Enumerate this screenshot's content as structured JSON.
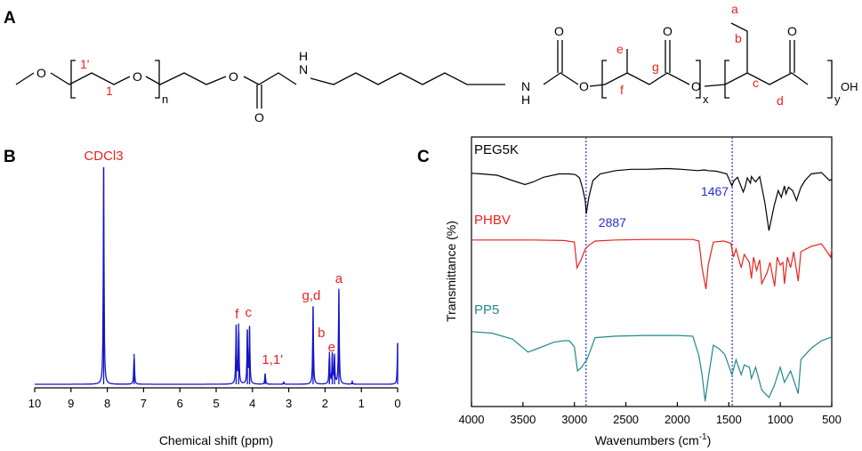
{
  "panel_labels": [
    "A",
    "B",
    "C"
  ],
  "structure": {
    "atoms": {
      "o1": "O",
      "o2": "O",
      "o3": "O",
      "o_carb1": "O",
      "nh1": "H",
      "n1": "N",
      "nh2": "N",
      "h2": "H",
      "o_carb2": "O",
      "o4": "O",
      "o_c1": "O",
      "o5": "O",
      "o_c2": "O",
      "oh": "OH"
    },
    "subscripts": {
      "n": "n",
      "x": "x",
      "y": "y"
    },
    "labels": {
      "l1p": "1'",
      "l1": "1",
      "le": "e",
      "lf": "f",
      "lg": "g",
      "la": "a",
      "lb": "b",
      "lc": "c",
      "ld": "d"
    },
    "colors": {
      "label": "#e8231f",
      "bond": "#000000"
    }
  },
  "nmr": {
    "chart_data": {
      "type": "line",
      "xlabel": "Chemical shift (ppm)",
      "xlim": [
        10,
        0
      ],
      "x_reversed": true,
      "x_ticks": [
        "10",
        "9",
        "8",
        "7",
        "6",
        "5",
        "4",
        "3",
        "2",
        "1",
        "0"
      ],
      "color": "#1414c8",
      "peaks": [
        {
          "x": 8.1,
          "h": 1.0
        },
        {
          "x": 7.26,
          "h": 0.14
        },
        {
          "x": 4.45,
          "h": 0.27
        },
        {
          "x": 4.38,
          "h": 0.28
        },
        {
          "x": 4.14,
          "h": 0.25
        },
        {
          "x": 4.08,
          "h": 0.26
        },
        {
          "x": 3.65,
          "h": 0.05
        },
        {
          "x": 3.14,
          "h": 0.01
        },
        {
          "x": 2.33,
          "h": 0.36
        },
        {
          "x": 1.88,
          "h": 0.15
        },
        {
          "x": 1.8,
          "h": 0.14
        },
        {
          "x": 1.74,
          "h": 0.13
        },
        {
          "x": 1.62,
          "h": 0.44
        },
        {
          "x": 1.25,
          "h": 0.012
        },
        {
          "x": 0.0,
          "h": 0.19
        }
      ],
      "annotations": [
        {
          "text": "CDCl3",
          "x": 8.1
        },
        {
          "text": "f",
          "x": 4.43
        },
        {
          "text": "c",
          "x": 4.11
        },
        {
          "text": "1,1'",
          "x": 3.45
        },
        {
          "text": "g,d",
          "x": 2.38
        },
        {
          "text": "b",
          "x": 2.1
        },
        {
          "text": "e",
          "x": 1.82
        },
        {
          "text": "a",
          "x": 1.62
        }
      ]
    }
  },
  "ftir": {
    "chart_data": {
      "type": "line",
      "xlabel": "Wavenumbers (cm-1)",
      "ylabel": "Transmittance (%)",
      "xlim": [
        4000,
        500
      ],
      "x_reversed": true,
      "x_ticks": [
        "4000",
        "3500",
        "3000",
        "2500",
        "2000",
        "1500",
        "1000",
        "500"
      ],
      "reference_lines": [
        {
          "x": 2887,
          "label": "2887"
        },
        {
          "x": 1467,
          "label": "1467"
        }
      ],
      "series": [
        {
          "name": "PEG5K",
          "color": "#000000",
          "points": [
            [
              4000,
              0.91
            ],
            [
              3900,
              0.9
            ],
            [
              3750,
              0.88
            ],
            [
              3600,
              0.8
            ],
            [
              3480,
              0.74
            ],
            [
              3400,
              0.78
            ],
            [
              3300,
              0.85
            ],
            [
              3150,
              0.9
            ],
            [
              3050,
              0.9
            ],
            [
              2990,
              0.89
            ],
            [
              2950,
              0.84
            ],
            [
              2920,
              0.68
            ],
            [
              2895,
              0.5
            ],
            [
              2885,
              0.3
            ],
            [
              2860,
              0.55
            ],
            [
              2820,
              0.8
            ],
            [
              2750,
              0.9
            ],
            [
              2600,
              0.95
            ],
            [
              2450,
              0.97
            ],
            [
              2300,
              0.97
            ],
            [
              2200,
              0.975
            ],
            [
              2100,
              0.98
            ],
            [
              1960,
              0.97
            ],
            [
              1800,
              0.95
            ],
            [
              1740,
              0.96
            ],
            [
              1700,
              0.95
            ],
            [
              1620,
              0.94
            ],
            [
              1520,
              0.9
            ],
            [
              1470,
              0.72
            ],
            [
              1450,
              0.8
            ],
            [
              1415,
              0.85
            ],
            [
              1360,
              0.63
            ],
            [
              1343,
              0.7
            ],
            [
              1320,
              0.84
            ],
            [
              1290,
              0.76
            ],
            [
              1280,
              0.86
            ],
            [
              1240,
              0.78
            ],
            [
              1200,
              0.86
            ],
            [
              1150,
              0.47
            ],
            [
              1110,
              0.05
            ],
            [
              1060,
              0.42
            ],
            [
              1020,
              0.65
            ],
            [
              990,
              0.55
            ],
            [
              960,
              0.72
            ],
            [
              945,
              0.6
            ],
            [
              920,
              0.7
            ],
            [
              880,
              0.65
            ],
            [
              842,
              0.5
            ],
            [
              800,
              0.7
            ],
            [
              760,
              0.8
            ],
            [
              700,
              0.9
            ],
            [
              600,
              0.92
            ],
            [
              520,
              0.8
            ],
            [
              500,
              0.82
            ]
          ]
        },
        {
          "name": "PHBV",
          "color": "#e8231f",
          "points": [
            [
              4000,
              0.92
            ],
            [
              3700,
              0.92
            ],
            [
              3400,
              0.92
            ],
            [
              3100,
              0.91
            ],
            [
              3000,
              0.88
            ],
            [
              2975,
              0.4
            ],
            [
              2935,
              0.55
            ],
            [
              2895,
              0.75
            ],
            [
              2860,
              0.82
            ],
            [
              2800,
              0.9
            ],
            [
              2600,
              0.92
            ],
            [
              2300,
              0.93
            ],
            [
              2000,
              0.93
            ],
            [
              1850,
              0.93
            ],
            [
              1790,
              0.9
            ],
            [
              1760,
              0.4
            ],
            [
              1722,
              0.0
            ],
            [
              1700,
              0.45
            ],
            [
              1650,
              0.88
            ],
            [
              1550,
              0.9
            ],
            [
              1480,
              0.86
            ],
            [
              1455,
              0.6
            ],
            [
              1430,
              0.75
            ],
            [
              1380,
              0.4
            ],
            [
              1350,
              0.65
            ],
            [
              1300,
              0.5
            ],
            [
              1280,
              0.2
            ],
            [
              1260,
              0.6
            ],
            [
              1230,
              0.35
            ],
            [
              1200,
              0.55
            ],
            [
              1180,
              0.1
            ],
            [
              1130,
              0.3
            ],
            [
              1100,
              0.5
            ],
            [
              1055,
              0.05
            ],
            [
              1030,
              0.6
            ],
            [
              1000,
              0.45
            ],
            [
              975,
              0.5
            ],
            [
              960,
              0.1
            ],
            [
              930,
              0.6
            ],
            [
              900,
              0.4
            ],
            [
              870,
              0.7
            ],
            [
              826,
              0.15
            ],
            [
              800,
              0.7
            ],
            [
              700,
              0.8
            ],
            [
              600,
              0.85
            ],
            [
              510,
              0.6
            ],
            [
              500,
              0.75
            ]
          ]
        },
        {
          "name": "PP5",
          "color": "#1f8a8a",
          "points": [
            [
              4000,
              0.92
            ],
            [
              3800,
              0.9
            ],
            [
              3600,
              0.82
            ],
            [
              3450,
              0.65
            ],
            [
              3350,
              0.7
            ],
            [
              3200,
              0.78
            ],
            [
              3100,
              0.8
            ],
            [
              3050,
              0.8
            ],
            [
              3000,
              0.72
            ],
            [
              2970,
              0.4
            ],
            [
              2930,
              0.45
            ],
            [
              2880,
              0.55
            ],
            [
              2850,
              0.65
            ],
            [
              2800,
              0.84
            ],
            [
              2600,
              0.86
            ],
            [
              2300,
              0.87
            ],
            [
              2000,
              0.87
            ],
            [
              1850,
              0.86
            ],
            [
              1790,
              0.6
            ],
            [
              1760,
              0.35
            ],
            [
              1730,
              0.0
            ],
            [
              1700,
              0.3
            ],
            [
              1650,
              0.74
            ],
            [
              1600,
              0.7
            ],
            [
              1540,
              0.62
            ],
            [
              1470,
              0.35
            ],
            [
              1430,
              0.55
            ],
            [
              1380,
              0.35
            ],
            [
              1350,
              0.48
            ],
            [
              1300,
              0.45
            ],
            [
              1280,
              0.3
            ],
            [
              1240,
              0.45
            ],
            [
              1180,
              0.15
            ],
            [
              1110,
              0.05
            ],
            [
              1060,
              0.2
            ],
            [
              1000,
              0.45
            ],
            [
              960,
              0.25
            ],
            [
              900,
              0.4
            ],
            [
              826,
              0.1
            ],
            [
              800,
              0.55
            ],
            [
              700,
              0.7
            ],
            [
              600,
              0.8
            ],
            [
              500,
              0.85
            ]
          ]
        }
      ]
    }
  }
}
